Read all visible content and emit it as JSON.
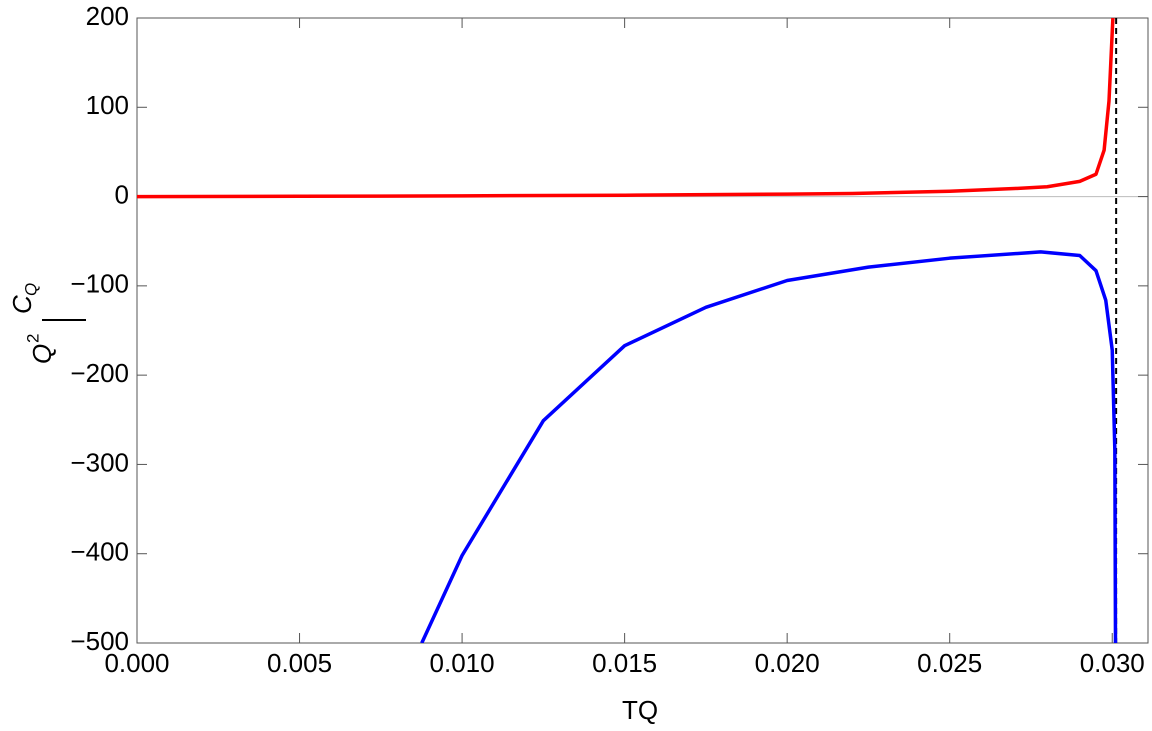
{
  "chart_data": {
    "type": "line",
    "xlabel": "TQ",
    "ylabel_numerator": "C",
    "ylabel_numerator_sub": "Q",
    "ylabel_denominator": "Q",
    "ylabel_denominator_sup": "2",
    "xlim": [
      0,
      0.0311
    ],
    "ylim": [
      -500,
      200
    ],
    "xticks": [
      {
        "value": 0,
        "label": "0.000"
      },
      {
        "value": 0.005,
        "label": "0.005"
      },
      {
        "value": 0.01,
        "label": "0.010"
      },
      {
        "value": 0.015,
        "label": "0.015"
      },
      {
        "value": 0.02,
        "label": "0.020"
      },
      {
        "value": 0.025,
        "label": "0.025"
      },
      {
        "value": 0.03,
        "label": "0.030"
      }
    ],
    "yticks": [
      {
        "value": -500,
        "label": "−500"
      },
      {
        "value": -400,
        "label": "−400"
      },
      {
        "value": -300,
        "label": "−300"
      },
      {
        "value": -200,
        "label": "−200"
      },
      {
        "value": -100,
        "label": "−100"
      },
      0,
      100,
      200
    ],
    "asymptote": 0.03012,
    "asymptote_color": "#000000",
    "series": [
      {
        "color": "#ff0000",
        "x": [
          0,
          0.005,
          0.01,
          0.015,
          0.02,
          0.022,
          0.025,
          0.027,
          0.028,
          0.029,
          0.0295,
          0.02975,
          0.0299,
          0.03002
        ],
        "values": [
          0,
          0.3,
          0.8,
          1.5,
          2.8,
          3.5,
          6,
          9,
          11,
          17,
          25,
          52,
          107,
          200
        ]
      },
      {
        "color": "#0000ff",
        "x": [
          0.00876,
          0.01,
          0.0125,
          0.015,
          0.0175,
          0.02,
          0.0225,
          0.025,
          0.0278,
          0.029,
          0.0295,
          0.0298,
          0.03,
          0.03008,
          0.0301
        ],
        "values": [
          -500,
          -402,
          -251,
          -167,
          -124,
          -94,
          -79,
          -69,
          -62,
          -66,
          -83,
          -116,
          -172,
          -284,
          -500
        ]
      }
    ]
  }
}
